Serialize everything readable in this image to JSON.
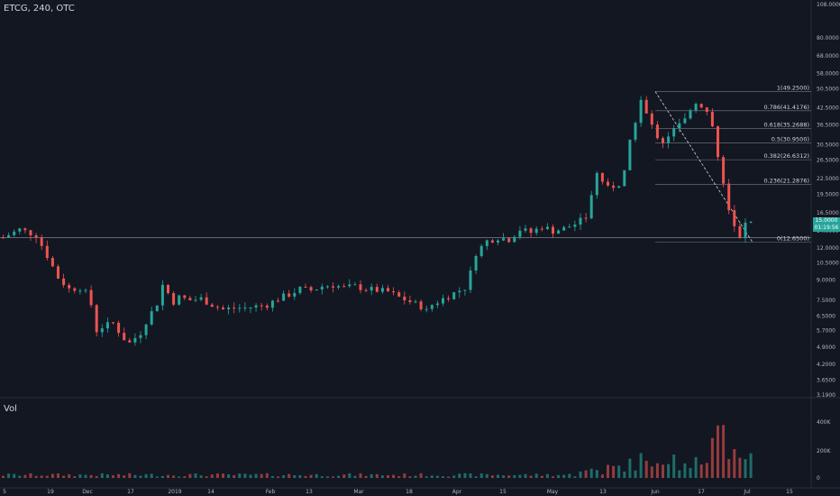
{
  "header": {
    "symbol_label": "ETCG, 240, OTC"
  },
  "volume_label": "Vol",
  "colors": {
    "background": "#131722",
    "up": "#26a69a",
    "down": "#ef5350",
    "text": "#b2b5be",
    "fib_line": "#787b86"
  },
  "price_tag": {
    "price": "15.0000",
    "countdown": "01:19:56"
  },
  "chart_data": {
    "type": "candlestick",
    "title": "ETCG, 240, OTC",
    "scale": "log",
    "y_ticks": [
      108,
      80,
      68,
      58,
      50.5,
      42.5,
      36.5,
      30.5,
      26.5,
      22.5,
      19.5,
      16.5,
      14,
      12,
      10.5,
      9,
      7.5,
      6.5,
      5.7,
      4.9,
      4.2,
      3.65,
      3.19
    ],
    "y_tick_labels": [
      "108.0000",
      "80.0000",
      "68.0000",
      "58.0000",
      "50.5000",
      "42.5000",
      "36.5000",
      "30.5000",
      "26.5000",
      "22.5000",
      "19.5000",
      "16.5000",
      "14.0000",
      "12.0000",
      "10.5000",
      "9.0000",
      "7.5000",
      "6.5000",
      "5.7000",
      "4.9000",
      "4.2000",
      "3.6500",
      "3.1900"
    ],
    "x_tick_labels": [
      "5",
      "19",
      "Dec",
      "17",
      "2019",
      "14",
      "Feb",
      "13",
      "Mar",
      "18",
      "Apr",
      "15",
      "May",
      "13",
      "Jun",
      "17",
      "Jul",
      "15"
    ],
    "price_path": [
      [
        0,
        13.2
      ],
      [
        3,
        14.2
      ],
      [
        6,
        13.5
      ],
      [
        8,
        11.2
      ],
      [
        10,
        9.2
      ],
      [
        12,
        8.3
      ],
      [
        14,
        8.4
      ],
      [
        15,
        8.0
      ],
      [
        16,
        7.2
      ],
      [
        17,
        5.7
      ],
      [
        18,
        5.9
      ],
      [
        20,
        6.1
      ],
      [
        22,
        5.3
      ],
      [
        23,
        5.1
      ],
      [
        25,
        5.6
      ],
      [
        26,
        6.2
      ],
      [
        28,
        7.3
      ],
      [
        29,
        8.6
      ],
      [
        30,
        8.0
      ],
      [
        31,
        7.4
      ],
      [
        32,
        7.7
      ],
      [
        34,
        7.5
      ],
      [
        36,
        7.6
      ],
      [
        38,
        7.2
      ],
      [
        40,
        6.9
      ],
      [
        42,
        7.0
      ],
      [
        44,
        7.0
      ],
      [
        46,
        7.1
      ],
      [
        48,
        7.2
      ],
      [
        50,
        7.6
      ],
      [
        52,
        7.9
      ],
      [
        54,
        8.3
      ],
      [
        56,
        8.2
      ],
      [
        58,
        8.5
      ],
      [
        60,
        8.6
      ],
      [
        62,
        8.4
      ],
      [
        64,
        8.5
      ],
      [
        66,
        8.3
      ],
      [
        68,
        8.2
      ],
      [
        70,
        8.1
      ],
      [
        72,
        7.7
      ],
      [
        74,
        7.4
      ],
      [
        76,
        7.1
      ],
      [
        77,
        6.8
      ],
      [
        78,
        7.2
      ],
      [
        80,
        7.6
      ],
      [
        82,
        8.0
      ],
      [
        84,
        8.4
      ],
      [
        85,
        9.6
      ],
      [
        86,
        11.5
      ],
      [
        88,
        12.8
      ],
      [
        90,
        13.2
      ],
      [
        92,
        13.0
      ],
      [
        94,
        14.2
      ],
      [
        96,
        13.8
      ],
      [
        98,
        14.6
      ],
      [
        100,
        14.0
      ],
      [
        102,
        14.3
      ],
      [
        104,
        14.9
      ],
      [
        106,
        15.8
      ],
      [
        107,
        19.5
      ],
      [
        108,
        23.5
      ],
      [
        109,
        22.0
      ],
      [
        110,
        20.5
      ],
      [
        112,
        21.5
      ],
      [
        113,
        24.0
      ],
      [
        114,
        31.0
      ],
      [
        115,
        38.0
      ],
      [
        116,
        45.5
      ],
      [
        117,
        40.0
      ],
      [
        118,
        36.0
      ],
      [
        119,
        33.0
      ],
      [
        120,
        31.5
      ],
      [
        122,
        35.0
      ],
      [
        124,
        38.0
      ],
      [
        125,
        42.5
      ],
      [
        126,
        45.0
      ],
      [
        127,
        43.5
      ],
      [
        128,
        41.0
      ],
      [
        129,
        36.0
      ],
      [
        130,
        28.0
      ],
      [
        131,
        21.0
      ],
      [
        132,
        17.0
      ],
      [
        133,
        14.5
      ],
      [
        134,
        13.0
      ],
      [
        135,
        14.8
      ],
      [
        136,
        15.0
      ]
    ],
    "fibonacci": [
      {
        "label": "1(49.2500)",
        "value": 49.25
      },
      {
        "label": "0.786(41.4176)",
        "value": 41.4176
      },
      {
        "label": "0.618(35.2688)",
        "value": 35.2688
      },
      {
        "label": "0.5(30.9500)",
        "value": 30.95
      },
      {
        "label": "0.382(26.6312)",
        "value": 26.6312
      },
      {
        "label": "0.236(21.2876)",
        "value": 21.2876
      },
      {
        "label": "0(12.6500)",
        "value": 12.65
      }
    ],
    "horizontal_line": 13.2,
    "volume": {
      "y_tick_labels": [
        "400K",
        "200K",
        "0"
      ],
      "ylim": [
        0,
        450000
      ]
    }
  }
}
